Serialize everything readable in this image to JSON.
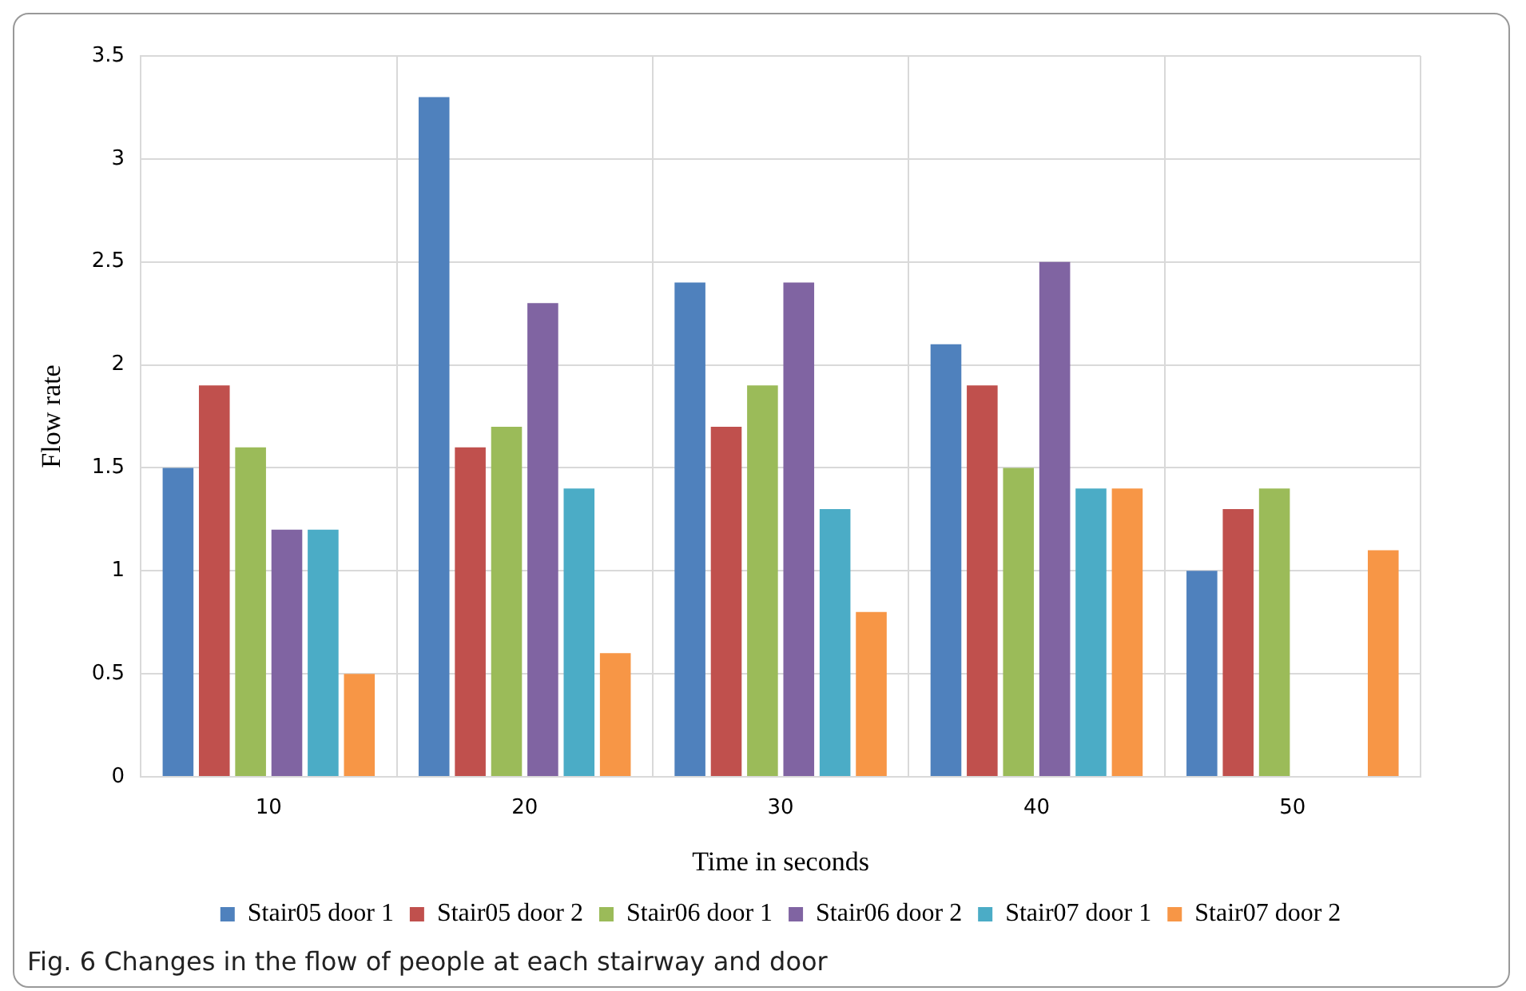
{
  "chart_data": {
    "type": "bar",
    "xlabel": "Time in seconds",
    "ylabel": "Flow rate",
    "categories": [
      "10",
      "20",
      "30",
      "40",
      "50"
    ],
    "series": [
      {
        "name": "Stair05 door 1",
        "color": "#4f81bd",
        "values": [
          1.5,
          3.3,
          2.4,
          2.1,
          1.0
        ]
      },
      {
        "name": "Stair05 door 2",
        "color": "#c0504d",
        "values": [
          1.9,
          1.6,
          1.7,
          1.9,
          1.3
        ]
      },
      {
        "name": "Stair06 door 1",
        "color": "#9bbb59",
        "values": [
          1.6,
          1.7,
          1.9,
          1.5,
          1.4
        ]
      },
      {
        "name": "Stair06 door 2",
        "color": "#8064a2",
        "values": [
          1.2,
          2.3,
          2.4,
          2.5,
          null
        ]
      },
      {
        "name": "Stair07 door 1",
        "color": "#4bacc6",
        "values": [
          1.2,
          1.4,
          1.3,
          1.4,
          null
        ]
      },
      {
        "name": "Stair07 door 2",
        "color": "#f79646",
        "values": [
          0.5,
          0.6,
          0.8,
          1.4,
          1.1
        ]
      }
    ],
    "ylim": [
      0,
      3.5
    ],
    "yticks": [
      0,
      0.5,
      1,
      1.5,
      2,
      2.5,
      3,
      3.5
    ],
    "grid": true,
    "legend": "bottom",
    "annotations": [
      "Fig. 6  Changes in the flow of people at each stairway and door"
    ]
  }
}
